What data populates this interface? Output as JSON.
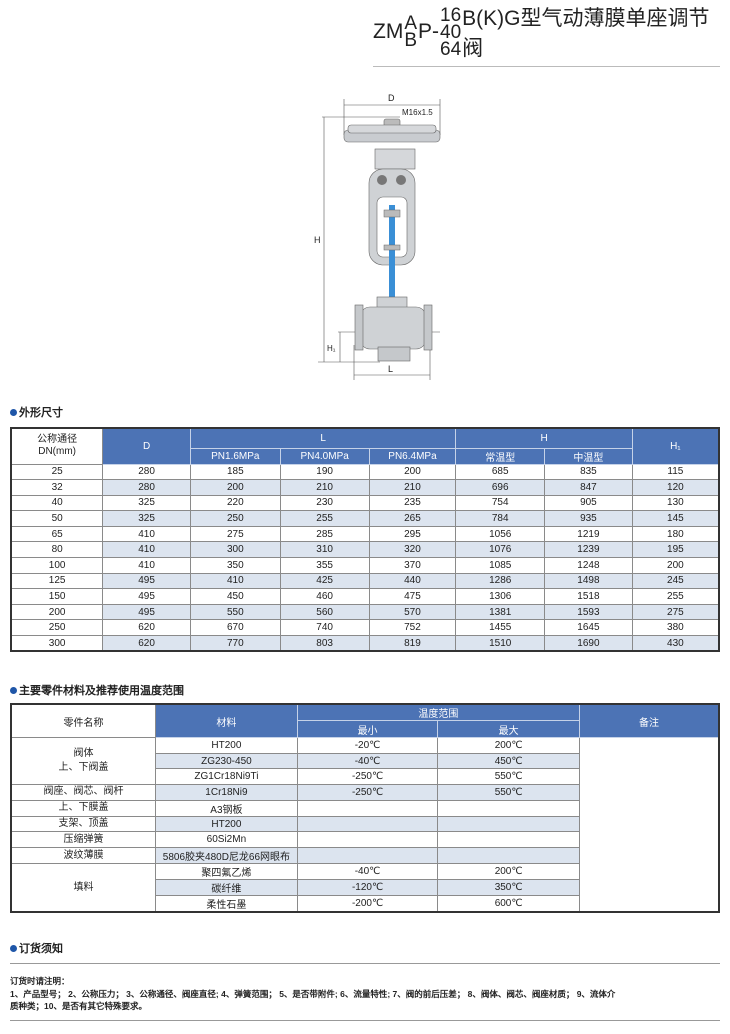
{
  "title": {
    "prefix": "ZM",
    "type_top": "A",
    "type_bottom": "B",
    "mid": "P-",
    "pressure_top": "16",
    "pressure_mid": "40",
    "pressure_bottom": "64",
    "suffix": "B(K)G型气动薄膜单座调节阀"
  },
  "diagram": {
    "labels": {
      "d": "D",
      "thread": "M16x1.5",
      "h": "H",
      "h1": "H₁",
      "l": "L"
    },
    "stem_color": "#3a8fd6"
  },
  "section1": {
    "title": "外形尺寸"
  },
  "dimensions_table": {
    "headers": {
      "dn": "公称通径\nDN(mm)",
      "d": "D",
      "l": "L",
      "l_sub": [
        "PN1.6MPa",
        "PN4.0MPa",
        "PN6.4MPa"
      ],
      "h": "H",
      "h_sub": [
        "常温型",
        "中温型"
      ],
      "h1": "H₁"
    },
    "rows": [
      [
        "25",
        "280",
        "185",
        "190",
        "200",
        "685",
        "835",
        "115"
      ],
      [
        "32",
        "280",
        "200",
        "210",
        "210",
        "696",
        "847",
        "120"
      ],
      [
        "40",
        "325",
        "220",
        "230",
        "235",
        "754",
        "905",
        "130"
      ],
      [
        "50",
        "325",
        "250",
        "255",
        "265",
        "784",
        "935",
        "145"
      ],
      [
        "65",
        "410",
        "275",
        "285",
        "295",
        "1056",
        "1219",
        "180"
      ],
      [
        "80",
        "410",
        "300",
        "310",
        "320",
        "1076",
        "1239",
        "195"
      ],
      [
        "100",
        "410",
        "350",
        "355",
        "370",
        "1085",
        "1248",
        "200"
      ],
      [
        "125",
        "495",
        "410",
        "425",
        "440",
        "1286",
        "1498",
        "245"
      ],
      [
        "150",
        "495",
        "450",
        "460",
        "475",
        "1306",
        "1518",
        "255"
      ],
      [
        "200",
        "495",
        "550",
        "560",
        "570",
        "1381",
        "1593",
        "275"
      ],
      [
        "250",
        "620",
        "670",
        "740",
        "752",
        "1455",
        "1645",
        "380"
      ],
      [
        "300",
        "620",
        "770",
        "803",
        "819",
        "1510",
        "1690",
        "430"
      ]
    ]
  },
  "section2": {
    "title": "主要零件材料及推荐使用温度范围"
  },
  "materials_table": {
    "headers": {
      "part": "零件名称",
      "material": "材料",
      "temp": "温度范围",
      "min": "最小",
      "max": "最大",
      "remark": "备注"
    },
    "groups": [
      {
        "part": "阀体\n上、下阀盖",
        "rows": [
          [
            "HT200",
            "-20℃",
            "200℃"
          ],
          [
            "ZG230-450",
            "-40℃",
            "450℃"
          ],
          [
            "ZG1Cr18Ni9Ti",
            "-250℃",
            "550℃"
          ]
        ]
      },
      {
        "part": "阀座、阀芯、阀杆",
        "rows": [
          [
            "1Cr18Ni9",
            "-250℃",
            "550℃"
          ]
        ]
      },
      {
        "part": "上、下膜盖",
        "rows": [
          [
            "A3钢板",
            "",
            ""
          ]
        ]
      },
      {
        "part": "支架、顶盖",
        "rows": [
          [
            "HT200",
            "",
            ""
          ]
        ]
      },
      {
        "part": "压缩弹簧",
        "rows": [
          [
            "60Si2Mn",
            "",
            ""
          ]
        ]
      },
      {
        "part": "波纹薄膜",
        "rows": [
          [
            "5806胶夹480D尼龙66网眼布",
            "",
            ""
          ]
        ]
      },
      {
        "part": "填料",
        "rows": [
          [
            "聚四氟乙烯",
            "-40℃",
            "200℃"
          ],
          [
            "碳纤维",
            "-120℃",
            "350℃"
          ],
          [
            "柔性石墨",
            "-200℃",
            "600℃"
          ]
        ]
      }
    ]
  },
  "section3": {
    "title": "订货须知"
  },
  "order_notes": {
    "heading": "订货时请注明：",
    "text": "1、产品型号； 2、公称压力； 3、公称通径、阀座直径; 4、弹簧范围； 5、是否带附件; 6、流量特性; 7、阀的前后压差； 8、阀体、阀芯、阀座材质； 9、流体介质种类；10、是否有其它特殊要求。"
  },
  "colors": {
    "header_blue": "#4c73b5",
    "stripe": "#dce4ef",
    "bullet": "#1f56a8"
  }
}
